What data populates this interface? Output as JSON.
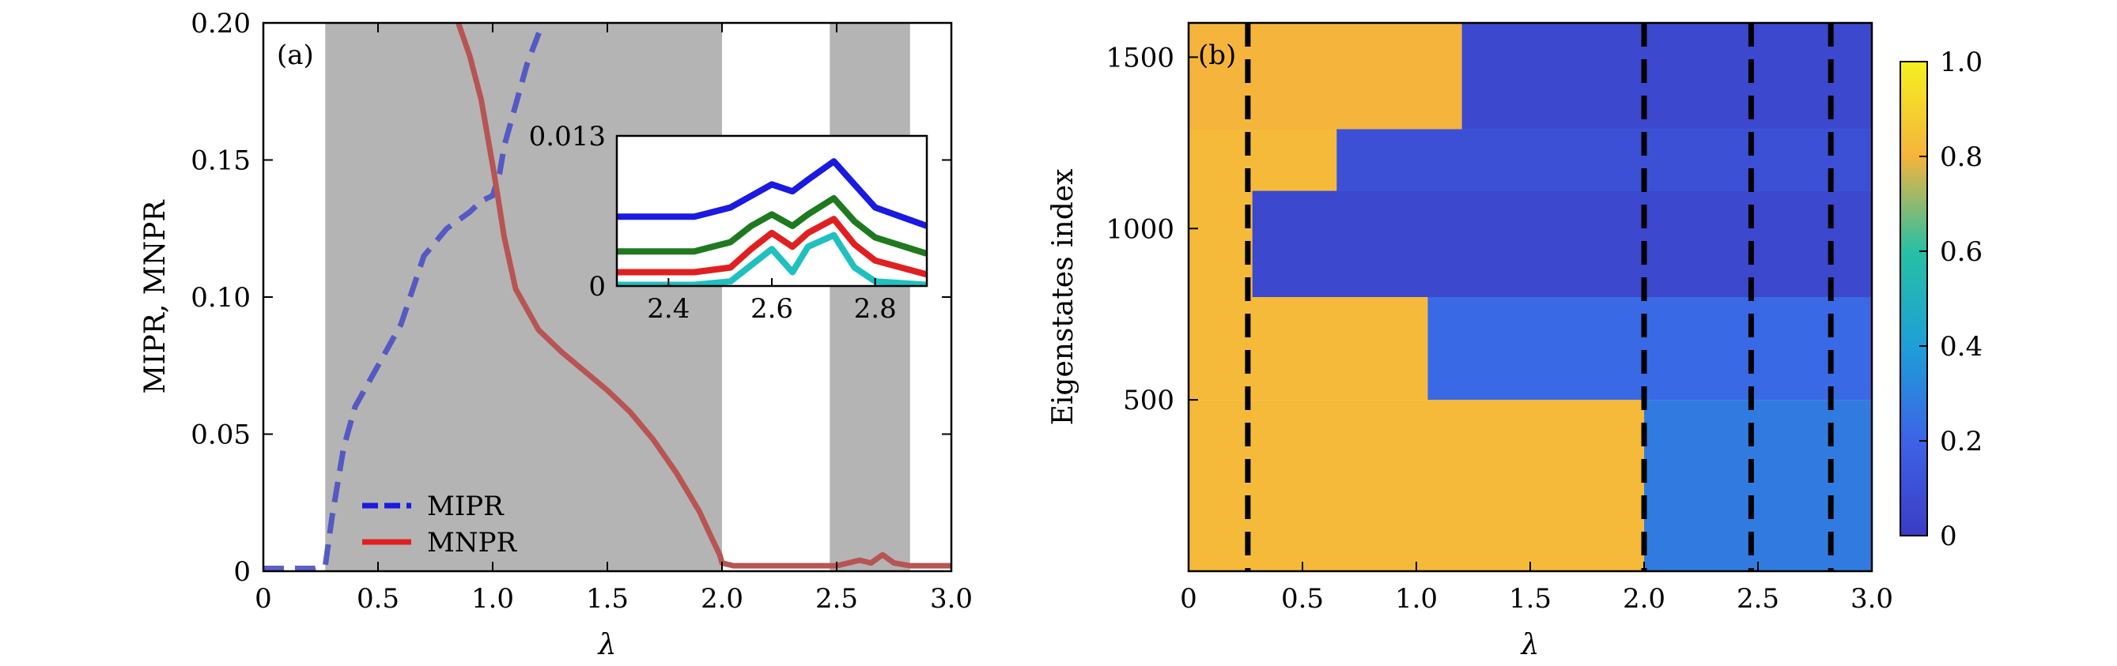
{
  "chart_data": [
    {
      "panel": "(a)",
      "type": "line",
      "xlabel": "λ",
      "ylabel": "MIPR, MNPR",
      "xlim": [
        0,
        3.0
      ],
      "ylim": [
        0,
        0.2
      ],
      "xticks": [
        "0",
        "0.5",
        "1.0",
        "1.5",
        "2.0",
        "2.5",
        "3.0"
      ],
      "yticks": [
        "0",
        "0.05",
        "0.10",
        "0.15",
        "0.20"
      ],
      "shaded_regions": [
        [
          0.27,
          2.0
        ],
        [
          2.47,
          2.82
        ]
      ],
      "series": [
        {
          "name": "MIPR",
          "style": "dashed",
          "color": "#4a4fc4",
          "x": [
            0,
            0.1,
            0.22,
            0.27,
            0.3,
            0.35,
            0.4,
            0.5,
            0.6,
            0.7,
            0.8,
            0.9,
            0.95,
            1.0,
            1.03,
            1.05,
            1.1,
            1.15,
            1.2,
            1.22
          ],
          "y": [
            0.001,
            0.001,
            0.001,
            0.002,
            0.02,
            0.045,
            0.06,
            0.075,
            0.09,
            0.115,
            0.125,
            0.131,
            0.135,
            0.137,
            0.145,
            0.155,
            0.17,
            0.185,
            0.196,
            0.2
          ]
        },
        {
          "name": "MNPR",
          "style": "solid",
          "color": "#b85454",
          "x": [
            0.85,
            0.9,
            0.95,
            1.0,
            1.02,
            1.05,
            1.1,
            1.2,
            1.3,
            1.4,
            1.5,
            1.6,
            1.7,
            1.8,
            1.9,
            1.95,
            1.99,
            2.0,
            2.05,
            2.3,
            2.5,
            2.6,
            2.65,
            2.7,
            2.75,
            2.82,
            3.0
          ],
          "y": [
            0.2,
            0.188,
            0.172,
            0.148,
            0.138,
            0.122,
            0.103,
            0.088,
            0.08,
            0.073,
            0.066,
            0.058,
            0.048,
            0.036,
            0.022,
            0.013,
            0.006,
            0.003,
            0.002,
            0.002,
            0.002,
            0.004,
            0.003,
            0.006,
            0.003,
            0.002,
            0.002
          ]
        }
      ],
      "legend": {
        "placement": "bottom-left",
        "entries": [
          "MIPR",
          "MNPR"
        ]
      },
      "inset": {
        "xlim": [
          2.3,
          2.9
        ],
        "ylim": [
          0,
          0.013
        ],
        "xticks": [
          "2.4",
          "2.6",
          "2.8"
        ],
        "yticks": [
          "0",
          "0.013"
        ],
        "series": [
          {
            "color": "#1a1ae0",
            "x": [
              2.3,
              2.45,
              2.52,
              2.56,
              2.6,
              2.64,
              2.67,
              2.72,
              2.76,
              2.8,
              2.9
            ],
            "y": [
              0.006,
              0.006,
              0.0068,
              0.0078,
              0.0088,
              0.0082,
              0.0092,
              0.0108,
              0.0088,
              0.0068,
              0.0052
            ]
          },
          {
            "color": "#1f7a1f",
            "x": [
              2.3,
              2.45,
              2.52,
              2.56,
              2.6,
              2.64,
              2.67,
              2.72,
              2.76,
              2.8,
              2.9
            ],
            "y": [
              0.003,
              0.003,
              0.0038,
              0.0052,
              0.0062,
              0.0052,
              0.0062,
              0.0076,
              0.0056,
              0.0042,
              0.0028
            ]
          },
          {
            "color": "#e02020",
            "x": [
              2.3,
              2.45,
              2.52,
              2.56,
              2.6,
              2.64,
              2.67,
              2.72,
              2.76,
              2.8,
              2.9
            ],
            "y": [
              0.0012,
              0.0012,
              0.0016,
              0.0032,
              0.0046,
              0.0034,
              0.0046,
              0.0058,
              0.0036,
              0.0022,
              0.001
            ]
          },
          {
            "color": "#20c0c0",
            "x": [
              2.3,
              2.45,
              2.52,
              2.56,
              2.6,
              2.64,
              2.67,
              2.72,
              2.76,
              2.8,
              2.9
            ],
            "y": [
              0.0001,
              0.0001,
              0.0004,
              0.0018,
              0.0032,
              0.0012,
              0.0034,
              0.0044,
              0.0016,
              0.0004,
              0.0001
            ]
          }
        ]
      }
    },
    {
      "panel": "(b)",
      "type": "heatmap",
      "xlabel": "λ",
      "ylabel": "Eigenstates index",
      "xlim": [
        0,
        3.0
      ],
      "ylim": [
        0,
        1600
      ],
      "xticks": [
        "0",
        "0.5",
        "1.0",
        "1.5",
        "2.0",
        "2.5",
        "3.0"
      ],
      "yticks": [
        "500",
        "1000",
        "1500"
      ],
      "dashed_lines_x": [
        0.26,
        2.0,
        2.47,
        2.82
      ],
      "colorbar": {
        "range": [
          0,
          1.0
        ],
        "ticks": [
          "0",
          "0.2",
          "0.4",
          "0.6",
          "0.8",
          "1.0"
        ],
        "colormap": "viridis-like"
      },
      "regions": [
        {
          "x0": 0,
          "x1": 2.0,
          "y0": 0,
          "y1": 500,
          "value": 0.82
        },
        {
          "x0": 2.0,
          "x1": 3.0,
          "y0": 0,
          "y1": 500,
          "value": 0.28
        },
        {
          "x0": 0,
          "x1": 1.05,
          "y0": 500,
          "y1": 800,
          "value": 0.82
        },
        {
          "x0": 1.05,
          "x1": 3.0,
          "y0": 500,
          "y1": 800,
          "value": 0.22
        },
        {
          "x0": 0,
          "x1": 0.28,
          "y0": 800,
          "y1": 1110,
          "value": 0.82
        },
        {
          "x0": 0.28,
          "x1": 3.0,
          "y0": 800,
          "y1": 1110,
          "value": 0.06
        },
        {
          "x0": 0,
          "x1": 0.65,
          "y0": 1110,
          "y1": 1290,
          "value": 0.82
        },
        {
          "x0": 0.65,
          "x1": 3.0,
          "y0": 1110,
          "y1": 1290,
          "value": 0.1
        },
        {
          "x0": 0,
          "x1": 1.2,
          "y0": 1290,
          "y1": 1600,
          "value": 0.8
        },
        {
          "x0": 1.2,
          "x1": 3.0,
          "y0": 1290,
          "y1": 1600,
          "value": 0.06
        }
      ]
    }
  ]
}
